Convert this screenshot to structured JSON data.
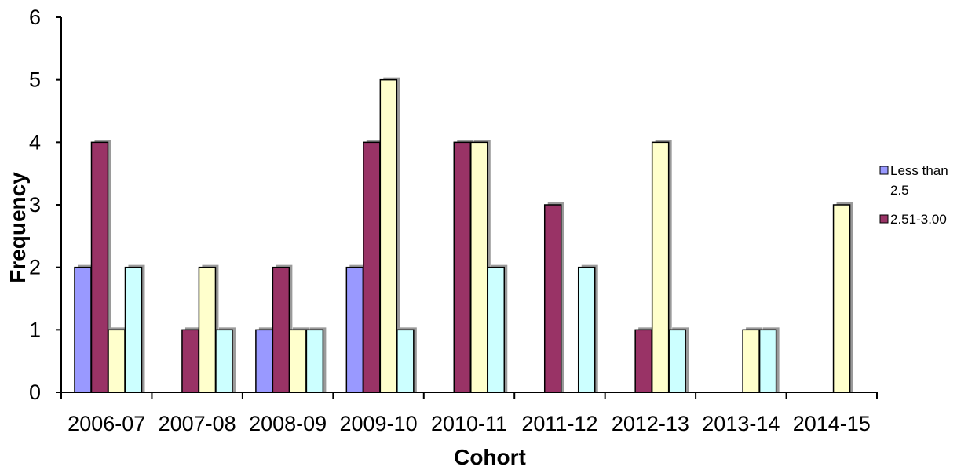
{
  "chart_data": {
    "type": "bar",
    "categories": [
      "2006-07",
      "2007-08",
      "2008-09",
      "2009-10",
      "2010-11",
      "2011-12",
      "2012-13",
      "2013-14",
      "2014-15"
    ],
    "series": [
      {
        "name": "Less than 2.5",
        "color": "#9999ff",
        "values": [
          2,
          0,
          1,
          2,
          0,
          0,
          0,
          0,
          0
        ]
      },
      {
        "name": "2.51-3.00",
        "color": "#993366",
        "values": [
          4,
          1,
          2,
          4,
          4,
          3,
          1,
          0,
          0
        ]
      },
      {
        "color": "#ffffcc",
        "values": [
          1,
          2,
          1,
          5,
          4,
          0,
          4,
          1,
          3
        ]
      },
      {
        "color": "#ccffff",
        "values": [
          2,
          1,
          1,
          1,
          2,
          2,
          1,
          1,
          0
        ]
      }
    ],
    "xlabel": "Cohort",
    "ylabel": "Frequency",
    "ylim": [
      0,
      6
    ],
    "yticks": [
      "0",
      "1",
      "2",
      "3",
      "4",
      "5",
      "6"
    ],
    "grid": false,
    "legend_position": "right",
    "legend_items": [
      {
        "lines": [
          "Less than",
          "2.5"
        ],
        "color": "#9999ff"
      },
      {
        "lines": [
          "2.51-3.00"
        ],
        "color": "#993366"
      }
    ]
  }
}
